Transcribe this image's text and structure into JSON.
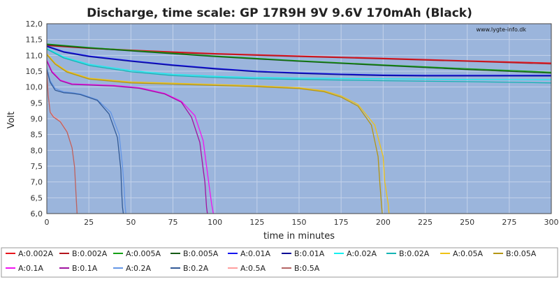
{
  "chart_data": {
    "type": "line",
    "title": "Discharge, time scale: GP 17R9H 9V 9.6V 170mAh (Black)",
    "watermark": "www.lygte-info.dk",
    "xlabel": "time in minutes",
    "ylabel": "Volt",
    "xlim": [
      0,
      300
    ],
    "ylim": [
      6.0,
      12.0
    ],
    "xticks": [
      0,
      25,
      50,
      75,
      100,
      125,
      150,
      175,
      200,
      225,
      250,
      275,
      300
    ],
    "yticks": [
      "6,0",
      "6,5",
      "7,0",
      "7,5",
      "8,0",
      "8,5",
      "9,0",
      "9,5",
      "10,0",
      "10,5",
      "11,0",
      "11,5",
      "12,0"
    ],
    "grid": true,
    "legend_position": "bottom",
    "colors": {
      "plot_bg": "#9bb5dc",
      "grid": "#c3d2ea"
    },
    "series": [
      {
        "name": "A:0.002A",
        "color": "#e8141c",
        "x": [
          0,
          25,
          50,
          75,
          100,
          150,
          200,
          250,
          300
        ],
        "y": [
          11.33,
          11.24,
          11.17,
          11.11,
          11.06,
          10.98,
          10.91,
          10.83,
          10.76
        ]
      },
      {
        "name": "B:0.002A",
        "color": "#b4141c",
        "x": [
          0,
          25,
          50,
          75,
          100,
          150,
          200,
          250,
          300
        ],
        "y": [
          11.31,
          11.22,
          11.15,
          11.09,
          11.04,
          10.96,
          10.89,
          10.81,
          10.73
        ]
      },
      {
        "name": "A:0.005A",
        "color": "#14a014",
        "x": [
          0,
          25,
          50,
          75,
          100,
          150,
          200,
          250,
          300
        ],
        "y": [
          11.36,
          11.25,
          11.16,
          11.07,
          10.98,
          10.83,
          10.7,
          10.58,
          10.47
        ]
      },
      {
        "name": "B:0.005A",
        "color": "#145a14",
        "x": [
          0,
          25,
          50,
          75,
          100,
          150,
          200,
          250,
          300
        ],
        "y": [
          11.34,
          11.23,
          11.14,
          11.05,
          10.96,
          10.81,
          10.68,
          10.55,
          10.44
        ]
      },
      {
        "name": "A:0.01A",
        "color": "#1414f0",
        "x": [
          0,
          10,
          25,
          50,
          75,
          100,
          125,
          150,
          175,
          200,
          225,
          250,
          300
        ],
        "y": [
          11.3,
          11.12,
          10.98,
          10.83,
          10.7,
          10.59,
          10.5,
          10.45,
          10.41,
          10.38,
          10.37,
          10.37,
          10.37
        ]
      },
      {
        "name": "B:0.01A",
        "color": "#0a0a96",
        "x": [
          0,
          10,
          25,
          50,
          75,
          100,
          125,
          150,
          175,
          200,
          225,
          250,
          300
        ],
        "y": [
          11.28,
          11.1,
          10.96,
          10.81,
          10.68,
          10.57,
          10.48,
          10.43,
          10.39,
          10.36,
          10.35,
          10.35,
          10.35
        ]
      },
      {
        "name": "A:0.02A",
        "color": "#14f0f0",
        "x": [
          0,
          10,
          25,
          50,
          75,
          100,
          125,
          150,
          175,
          200,
          250,
          300
        ],
        "y": [
          11.22,
          10.95,
          10.72,
          10.52,
          10.4,
          10.34,
          10.3,
          10.28,
          10.27,
          10.26,
          10.24,
          10.23
        ]
      },
      {
        "name": "B:0.02A",
        "color": "#14b4b4",
        "x": [
          0,
          10,
          25,
          50,
          75,
          100,
          125,
          150,
          175,
          200,
          250,
          300
        ],
        "y": [
          11.2,
          10.92,
          10.68,
          10.48,
          10.36,
          10.3,
          10.26,
          10.24,
          10.22,
          10.2,
          10.17,
          10.13
        ]
      },
      {
        "name": "A:0.05A",
        "color": "#f0c314",
        "x": [
          0,
          5,
          12,
          25,
          50,
          75,
          100,
          125,
          150,
          165,
          175,
          185,
          195,
          200,
          201,
          203,
          203.5
        ],
        "y": [
          11.05,
          10.75,
          10.5,
          10.28,
          10.16,
          10.12,
          10.08,
          10.04,
          9.98,
          9.88,
          9.72,
          9.45,
          8.8,
          7.8,
          7.0,
          6.3,
          6.0
        ]
      },
      {
        "name": "B:0.05A",
        "color": "#b49614",
        "x": [
          0,
          5,
          12,
          25,
          50,
          75,
          100,
          125,
          150,
          165,
          175,
          185,
          193,
          197,
          198,
          199,
          199.5
        ],
        "y": [
          11.02,
          10.72,
          10.47,
          10.25,
          10.13,
          10.09,
          10.05,
          10.01,
          9.95,
          9.85,
          9.68,
          9.4,
          8.8,
          7.8,
          7.0,
          6.3,
          6.0
        ]
      },
      {
        "name": "A:0.1A",
        "color": "#f014f0",
        "x": [
          0,
          3,
          8,
          15,
          25,
          40,
          55,
          70,
          80,
          88,
          93,
          95,
          96,
          97,
          98,
          99
        ],
        "y": [
          10.85,
          10.5,
          10.22,
          10.1,
          10.08,
          10.05,
          9.98,
          9.8,
          9.55,
          9.1,
          8.3,
          7.5,
          7.1,
          6.7,
          6.3,
          6.0
        ]
      },
      {
        "name": "B:0.1A",
        "color": "#a014a0",
        "x": [
          0,
          3,
          8,
          15,
          25,
          40,
          55,
          70,
          80,
          86,
          91,
          93,
          94,
          94.5,
          95,
          95.5
        ],
        "y": [
          10.82,
          10.47,
          10.2,
          10.08,
          10.06,
          10.03,
          9.96,
          9.78,
          9.52,
          9.05,
          8.25,
          7.4,
          7.0,
          6.6,
          6.2,
          6.0
        ]
      },
      {
        "name": "A:0.2A",
        "color": "#6496e6",
        "x": [
          0,
          2,
          5,
          10,
          15,
          20,
          30,
          38,
          43,
          45,
          46,
          46.5,
          47
        ],
        "y": [
          10.6,
          10.2,
          9.95,
          9.85,
          9.82,
          9.78,
          9.6,
          9.2,
          8.5,
          7.5,
          6.8,
          6.3,
          6.0
        ]
      },
      {
        "name": "B:0.2A",
        "color": "#325a96",
        "x": [
          0,
          2,
          5,
          10,
          15,
          20,
          30,
          37,
          42,
          44,
          44.5,
          45,
          45.5
        ],
        "y": [
          10.55,
          10.15,
          9.9,
          9.82,
          9.8,
          9.76,
          9.58,
          9.15,
          8.4,
          7.4,
          6.7,
          6.2,
          6.0
        ]
      },
      {
        "name": "A:0.5A",
        "color": "#ff9e9e",
        "x": [
          0,
          0.8,
          2,
          4,
          8,
          12,
          15,
          16.5,
          17,
          17.5,
          18
        ],
        "y": [
          10.5,
          9.8,
          9.22,
          9.08,
          8.92,
          8.6,
          8.1,
          7.5,
          7.0,
          6.5,
          6.0
        ]
      },
      {
        "name": "B:0.5A",
        "color": "#b46464",
        "x": [
          0,
          0.8,
          2,
          4,
          8,
          12,
          15,
          16.5,
          17,
          17.5,
          18
        ],
        "y": [
          10.45,
          9.75,
          9.2,
          9.05,
          8.9,
          8.58,
          8.08,
          7.48,
          6.98,
          6.48,
          6.0
        ]
      }
    ]
  }
}
